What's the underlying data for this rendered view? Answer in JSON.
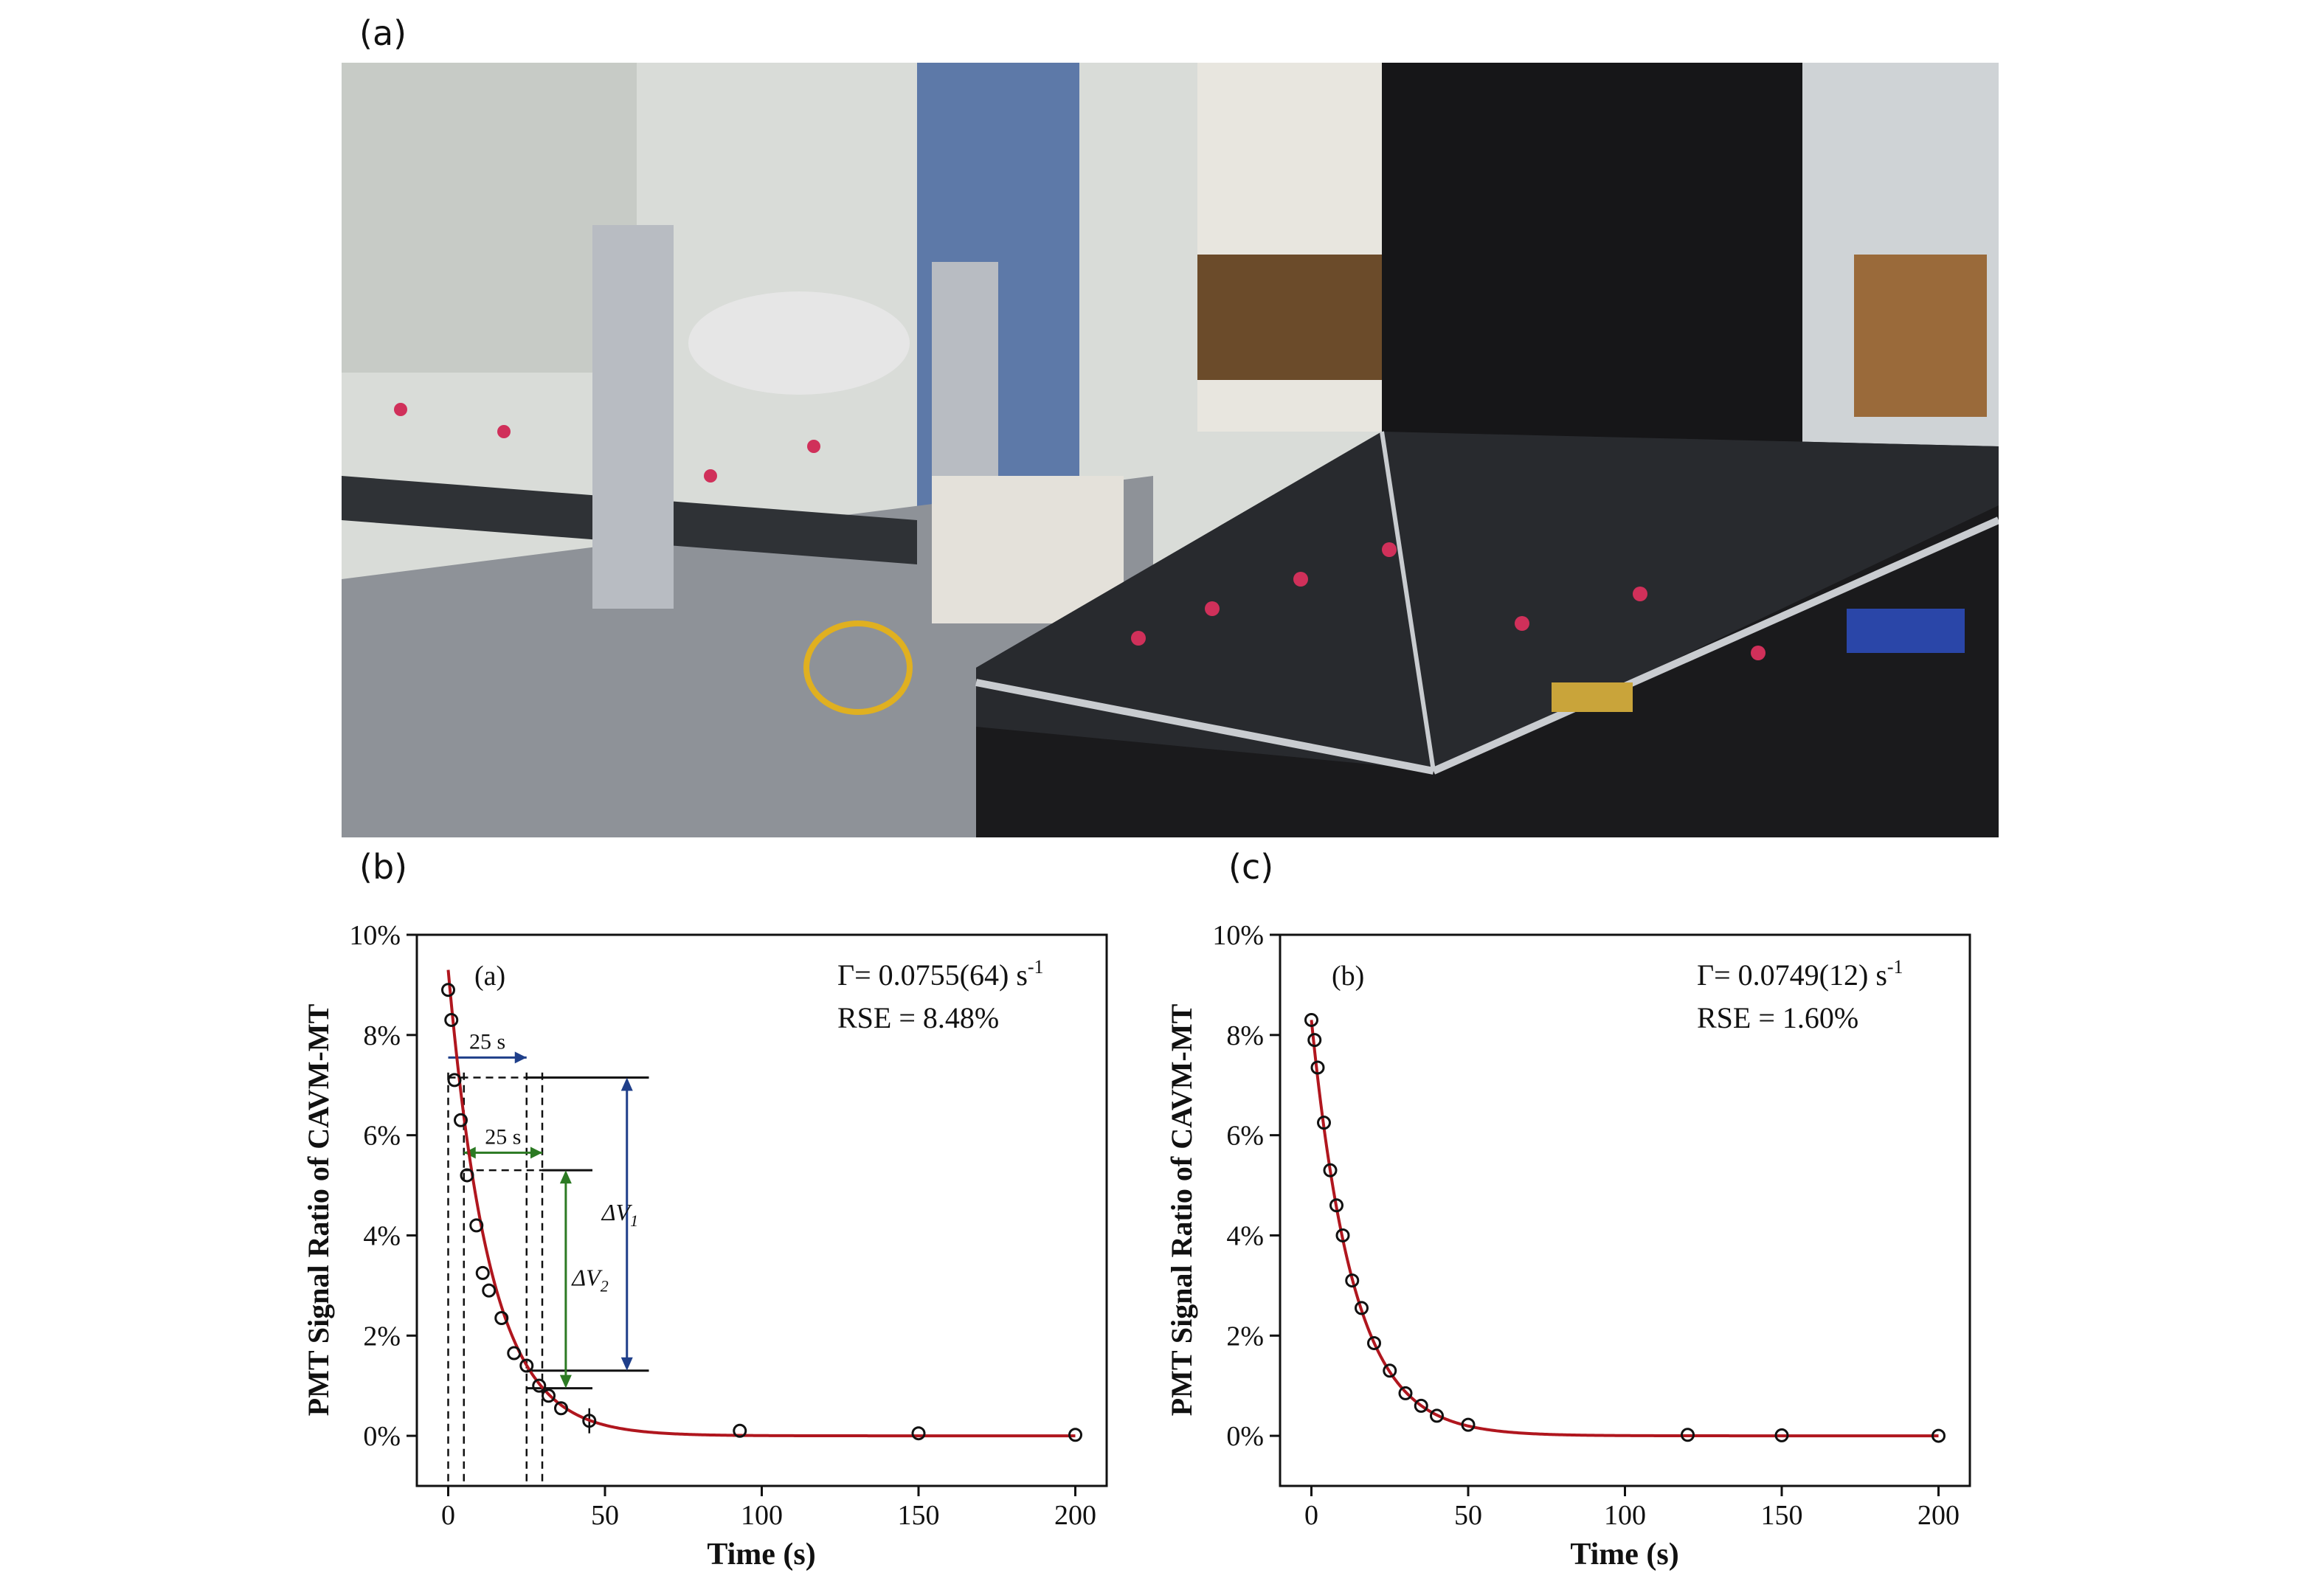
{
  "figure": {
    "labels": {
      "a": "(a)",
      "b": "(b)",
      "c": "(c)"
    }
  },
  "photo": {
    "description_icon": "laboratory-optics-photo",
    "colors": {
      "table": "#3a3d42",
      "enclosure": "#1a1a1c",
      "cabinet": "#161618",
      "steel": "#b8bcc2",
      "accent": "#d0305a"
    }
  },
  "chart_data": [
    {
      "type": "scatter",
      "inset_label": "(a)",
      "xlabel": "Time (s)",
      "ylabel": "PMT Signal Ratio of CAVM-MT",
      "xlim": [
        -10,
        210
      ],
      "ylim": [
        -1,
        10
      ],
      "xticks": [
        0,
        50,
        100,
        150,
        200
      ],
      "yticks": [
        0,
        2,
        4,
        6,
        8,
        10
      ],
      "ytick_labels": [
        "0%",
        "2%",
        "4%",
        "6%",
        "8%",
        "10%"
      ],
      "fit_text": "Γ= 0.0755(64) s",
      "fit_sup": "-1",
      "rse_text": "RSE = 8.48%",
      "fit": {
        "amplitude": 9.3,
        "gamma": 0.0755,
        "color": "#b0161e"
      },
      "points": [
        {
          "x": 0,
          "y": 8.9
        },
        {
          "x": 1,
          "y": 8.3
        },
        {
          "x": 2,
          "y": 7.1
        },
        {
          "x": 4,
          "y": 6.3
        },
        {
          "x": 6,
          "y": 5.2
        },
        {
          "x": 9,
          "y": 4.2
        },
        {
          "x": 11,
          "y": 3.25
        },
        {
          "x": 13,
          "y": 2.9
        },
        {
          "x": 17,
          "y": 2.35
        },
        {
          "x": 21,
          "y": 1.65
        },
        {
          "x": 25,
          "y": 1.4
        },
        {
          "x": 29,
          "y": 1.0
        },
        {
          "x": 32,
          "y": 0.8
        },
        {
          "x": 36,
          "y": 0.55
        },
        {
          "x": 45,
          "y": 0.3
        },
        {
          "x": 93,
          "y": 0.1
        },
        {
          "x": 150,
          "y": 0.05
        },
        {
          "x": 200,
          "y": 0.02
        }
      ],
      "annotations": {
        "span1_label": "25 s",
        "span2_label": "25 s",
        "dv1_main": "ΔV",
        "dv1_sub": "1",
        "dv2_main": "ΔV",
        "dv2_sub": "2",
        "colors": {
          "dv1": "#1f3f8a",
          "dv2": "#2c7a23"
        }
      }
    },
    {
      "type": "scatter",
      "inset_label": "(b)",
      "xlabel": "Time (s)",
      "ylabel": "PMT Signal Ratio of CAVM-MT",
      "xlim": [
        -10,
        210
      ],
      "ylim": [
        -1,
        10
      ],
      "xticks": [
        0,
        50,
        100,
        150,
        200
      ],
      "yticks": [
        0,
        2,
        4,
        6,
        8,
        10
      ],
      "ytick_labels": [
        "0%",
        "2%",
        "4%",
        "6%",
        "8%",
        "10%"
      ],
      "fit_text": "Γ= 0.0749(12) s",
      "fit_sup": "-1",
      "rse_text": "RSE = 1.60%",
      "fit": {
        "amplitude": 8.3,
        "gamma": 0.0749,
        "color": "#b0161e"
      },
      "points": [
        {
          "x": 0,
          "y": 8.3
        },
        {
          "x": 1,
          "y": 7.9
        },
        {
          "x": 2,
          "y": 7.35
        },
        {
          "x": 4,
          "y": 6.25
        },
        {
          "x": 6,
          "y": 5.3
        },
        {
          "x": 8,
          "y": 4.6
        },
        {
          "x": 10,
          "y": 4.0
        },
        {
          "x": 13,
          "y": 3.1
        },
        {
          "x": 16,
          "y": 2.55
        },
        {
          "x": 20,
          "y": 1.85
        },
        {
          "x": 25,
          "y": 1.3
        },
        {
          "x": 30,
          "y": 0.85
        },
        {
          "x": 35,
          "y": 0.6
        },
        {
          "x": 40,
          "y": 0.4
        },
        {
          "x": 50,
          "y": 0.22
        },
        {
          "x": 120,
          "y": 0.02
        },
        {
          "x": 150,
          "y": 0.01
        },
        {
          "x": 200,
          "y": 0.0
        }
      ]
    }
  ]
}
